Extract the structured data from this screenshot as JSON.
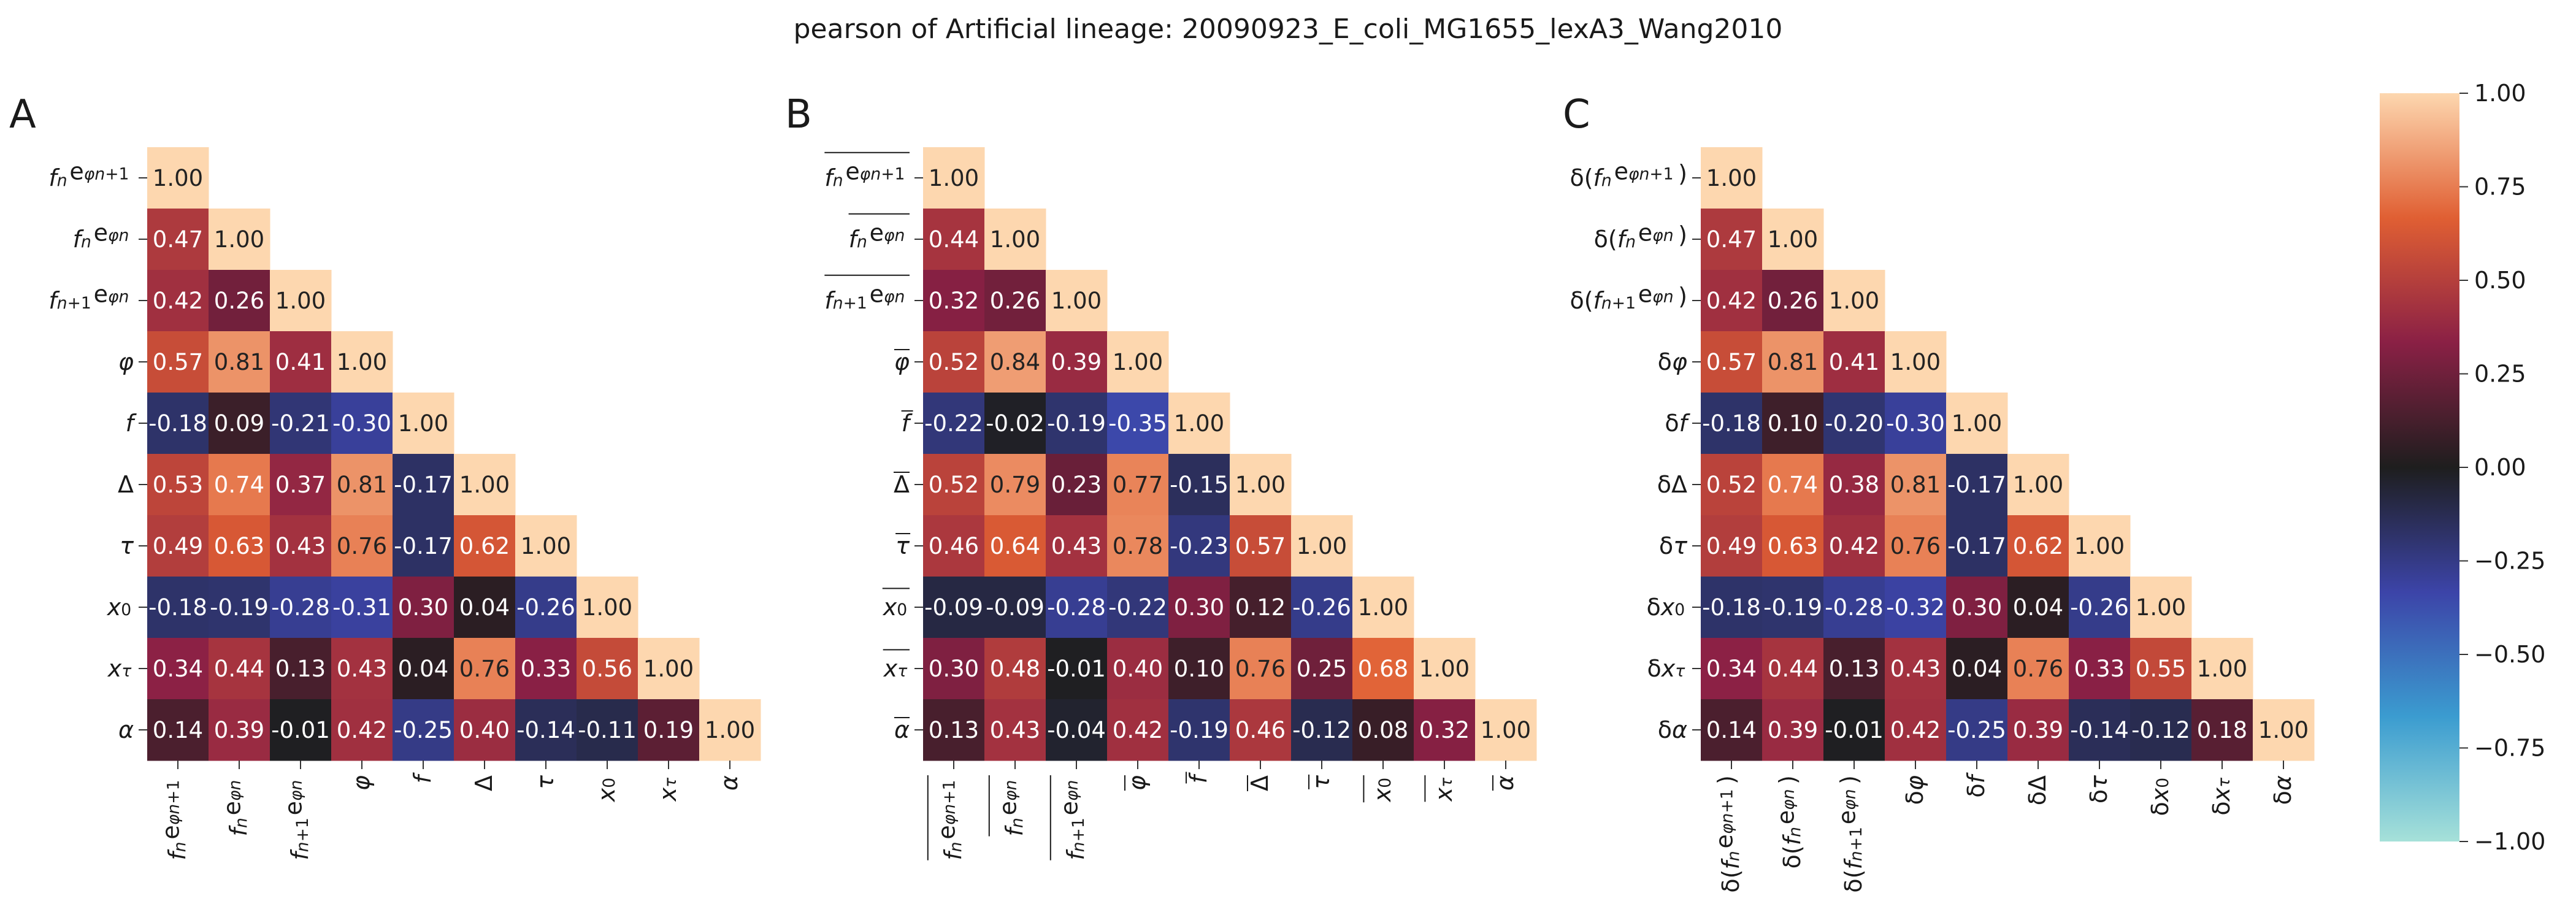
{
  "title": "pearson of Artificial lineage: 20090923_E_coli_MG1655_lexA3_Wang2010",
  "chart_data": [
    {
      "type": "heatmap",
      "panel_label": "A",
      "labels": [
        "f_n e^{φ_{n+1}}",
        "f_n e^{φ_n}",
        "f_{n+1} e^{φ_n}",
        "φ",
        "f",
        "Δ",
        "τ",
        "x_0",
        "x_τ",
        "α"
      ],
      "matrix": [
        [
          1.0
        ],
        [
          0.47,
          1.0
        ],
        [
          0.42,
          0.26,
          1.0
        ],
        [
          0.57,
          0.81,
          0.41,
          1.0
        ],
        [
          -0.18,
          0.09,
          -0.21,
          -0.3,
          1.0
        ],
        [
          0.53,
          0.74,
          0.37,
          0.81,
          -0.17,
          1.0
        ],
        [
          0.49,
          0.63,
          0.43,
          0.76,
          -0.17,
          0.62,
          1.0
        ],
        [
          -0.18,
          -0.19,
          -0.28,
          -0.31,
          0.3,
          0.04,
          -0.26,
          1.0
        ],
        [
          0.34,
          0.44,
          0.13,
          0.43,
          0.04,
          0.76,
          0.33,
          0.56,
          1.0
        ],
        [
          0.14,
          0.39,
          -0.01,
          0.42,
          -0.25,
          0.4,
          -0.14,
          -0.11,
          0.19,
          1.0
        ]
      ]
    },
    {
      "type": "heatmap",
      "panel_label": "B",
      "labels": [
        "overline{f_n e^{φ_{n+1}}}",
        "overline{f_n e^{φ_n}}",
        "overline{f_{n+1} e^{φ_n}}",
        "overline{φ}",
        "overline{f}",
        "overline{Δ}",
        "overline{τ}",
        "overline{x_0}",
        "overline{x_τ}",
        "overline{α}"
      ],
      "matrix": [
        [
          1.0
        ],
        [
          0.44,
          1.0
        ],
        [
          0.32,
          0.26,
          1.0
        ],
        [
          0.52,
          0.84,
          0.39,
          1.0
        ],
        [
          -0.22,
          -0.02,
          -0.19,
          -0.35,
          1.0
        ],
        [
          0.52,
          0.79,
          0.23,
          0.77,
          -0.15,
          1.0
        ],
        [
          0.46,
          0.64,
          0.43,
          0.78,
          -0.23,
          0.57,
          1.0
        ],
        [
          -0.09,
          -0.09,
          -0.28,
          -0.22,
          0.3,
          0.12,
          -0.26,
          1.0
        ],
        [
          0.3,
          0.48,
          -0.01,
          0.4,
          0.1,
          0.76,
          0.25,
          0.68,
          1.0
        ],
        [
          0.13,
          0.43,
          -0.04,
          0.42,
          -0.19,
          0.46,
          -0.12,
          0.08,
          0.32,
          1.0
        ]
      ]
    },
    {
      "type": "heatmap",
      "panel_label": "C",
      "labels": [
        "δ(f_n e^{φ_{n+1}})",
        "δ(f_n e^{φ_n})",
        "δ(f_{n+1} e^{φ_n})",
        "δφ",
        "δf",
        "δΔ",
        "δτ",
        "δx_0",
        "δx_τ",
        "δα"
      ],
      "matrix": [
        [
          1.0
        ],
        [
          0.47,
          1.0
        ],
        [
          0.42,
          0.26,
          1.0
        ],
        [
          0.57,
          0.81,
          0.41,
          1.0
        ],
        [
          -0.18,
          0.1,
          -0.2,
          -0.3,
          1.0
        ],
        [
          0.52,
          0.74,
          0.38,
          0.81,
          -0.17,
          1.0
        ],
        [
          0.49,
          0.63,
          0.42,
          0.76,
          -0.17,
          0.62,
          1.0
        ],
        [
          -0.18,
          -0.19,
          -0.28,
          -0.32,
          0.3,
          0.04,
          -0.26,
          1.0
        ],
        [
          0.34,
          0.44,
          0.13,
          0.43,
          0.04,
          0.76,
          0.33,
          0.55,
          1.0
        ],
        [
          0.14,
          0.39,
          -0.01,
          0.42,
          -0.25,
          0.39,
          -0.14,
          -0.12,
          0.18,
          1.0
        ]
      ]
    }
  ],
  "colorbar": {
    "range": [
      -1.0,
      1.0
    ],
    "ticks": [
      "1.00",
      "0.75",
      "0.50",
      "0.25",
      "0.00",
      "−0.25",
      "−0.50",
      "−0.75",
      "−1.00"
    ],
    "colormap": "icefire",
    "stops": [
      "#a6e1d9",
      "#3b9cd0",
      "#3c44a8",
      "#1e1e1e",
      "#8a2045",
      "#e05f33",
      "#fdd7af"
    ]
  }
}
